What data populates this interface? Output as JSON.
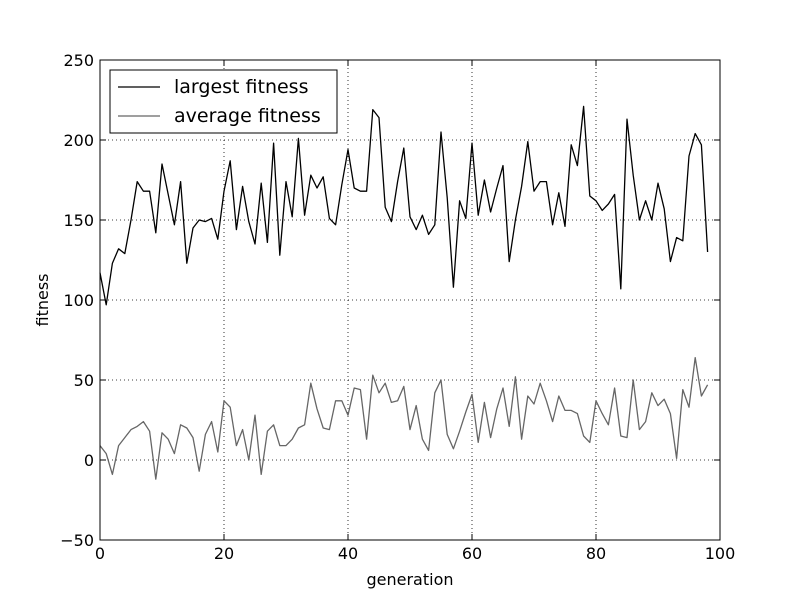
{
  "chart_data": {
    "type": "line",
    "title": "",
    "xlabel": "generation",
    "ylabel": "fitness",
    "xlim": [
      0,
      100
    ],
    "ylim": [
      -50,
      250
    ],
    "xticks": [
      0,
      20,
      40,
      60,
      80,
      100
    ],
    "yticks": [
      -50,
      0,
      50,
      100,
      150,
      200,
      250
    ],
    "grid": true,
    "legend_position": "top-left",
    "series": [
      {
        "name": "largest fitness",
        "color": "#000000",
        "x": [
          0,
          1,
          2,
          3,
          4,
          5,
          6,
          7,
          8,
          9,
          10,
          11,
          12,
          13,
          14,
          15,
          16,
          17,
          18,
          19,
          20,
          21,
          22,
          23,
          24,
          25,
          26,
          27,
          28,
          29,
          30,
          31,
          32,
          33,
          34,
          35,
          36,
          37,
          38,
          39,
          40,
          41,
          42,
          43,
          44,
          45,
          46,
          47,
          48,
          49,
          50,
          51,
          52,
          53,
          54,
          55,
          56,
          57,
          58,
          59,
          60,
          61,
          62,
          63,
          64,
          65,
          66,
          67,
          68,
          69,
          70,
          71,
          72,
          73,
          74,
          75,
          76,
          77,
          78,
          79,
          80,
          81,
          82,
          83,
          84,
          85,
          86,
          87,
          88,
          89,
          90,
          91,
          92,
          93,
          94,
          95,
          96,
          97,
          98
        ],
        "values": [
          117,
          97,
          123,
          132,
          129,
          150,
          174,
          168,
          168,
          142,
          185,
          166,
          147,
          174,
          123,
          145,
          150,
          149,
          151,
          138,
          168,
          187,
          144,
          171,
          149,
          135,
          173,
          136,
          198,
          128,
          174,
          152,
          201,
          153,
          178,
          170,
          177,
          151,
          147,
          172,
          194,
          170,
          168,
          168,
          219,
          214,
          158,
          149,
          174,
          195,
          152,
          144,
          153,
          141,
          147,
          205,
          164,
          108,
          162,
          151,
          198,
          153,
          175,
          155,
          170,
          184,
          124,
          150,
          171,
          199,
          168,
          174,
          174,
          147,
          167,
          146,
          197,
          184,
          221,
          165,
          162,
          156,
          160,
          166,
          107,
          213,
          178,
          150,
          162,
          150,
          173,
          157,
          124,
          139,
          137,
          190,
          204,
          197,
          130
        ]
      },
      {
        "name": "average fitness",
        "color": "#666666",
        "x": [
          0,
          1,
          2,
          3,
          4,
          5,
          6,
          7,
          8,
          9,
          10,
          11,
          12,
          13,
          14,
          15,
          16,
          17,
          18,
          19,
          20,
          21,
          22,
          23,
          24,
          25,
          26,
          27,
          28,
          29,
          30,
          31,
          32,
          33,
          34,
          35,
          36,
          37,
          38,
          39,
          40,
          41,
          42,
          43,
          44,
          45,
          46,
          47,
          48,
          49,
          50,
          51,
          52,
          53,
          54,
          55,
          56,
          57,
          58,
          59,
          60,
          61,
          62,
          63,
          64,
          65,
          66,
          67,
          68,
          69,
          70,
          71,
          72,
          73,
          74,
          75,
          76,
          77,
          78,
          79,
          80,
          81,
          82,
          83,
          84,
          85,
          86,
          87,
          88,
          89,
          90,
          91,
          92,
          93,
          94,
          95,
          96,
          97,
          98
        ],
        "values": [
          9,
          4,
          -9,
          9,
          14,
          19,
          21,
          24,
          18,
          -12,
          17,
          13,
          4,
          22,
          20,
          14,
          -7,
          16,
          24,
          5,
          37,
          33,
          9,
          19,
          0,
          28,
          -9,
          18,
          22,
          9,
          9,
          13,
          20,
          22,
          48,
          32,
          20,
          19,
          37,
          37,
          28,
          45,
          44,
          13,
          53,
          42,
          48,
          36,
          37,
          46,
          19,
          34,
          13,
          6,
          42,
          50,
          16,
          7,
          18,
          30,
          41,
          11,
          36,
          14,
          32,
          45,
          21,
          52,
          13,
          40,
          35,
          48,
          37,
          24,
          40,
          31,
          31,
          29,
          15,
          11,
          37,
          29,
          22,
          45,
          15,
          14,
          50,
          19,
          24,
          42,
          34,
          38,
          29,
          1,
          44,
          33,
          64,
          40,
          47
        ]
      }
    ]
  }
}
